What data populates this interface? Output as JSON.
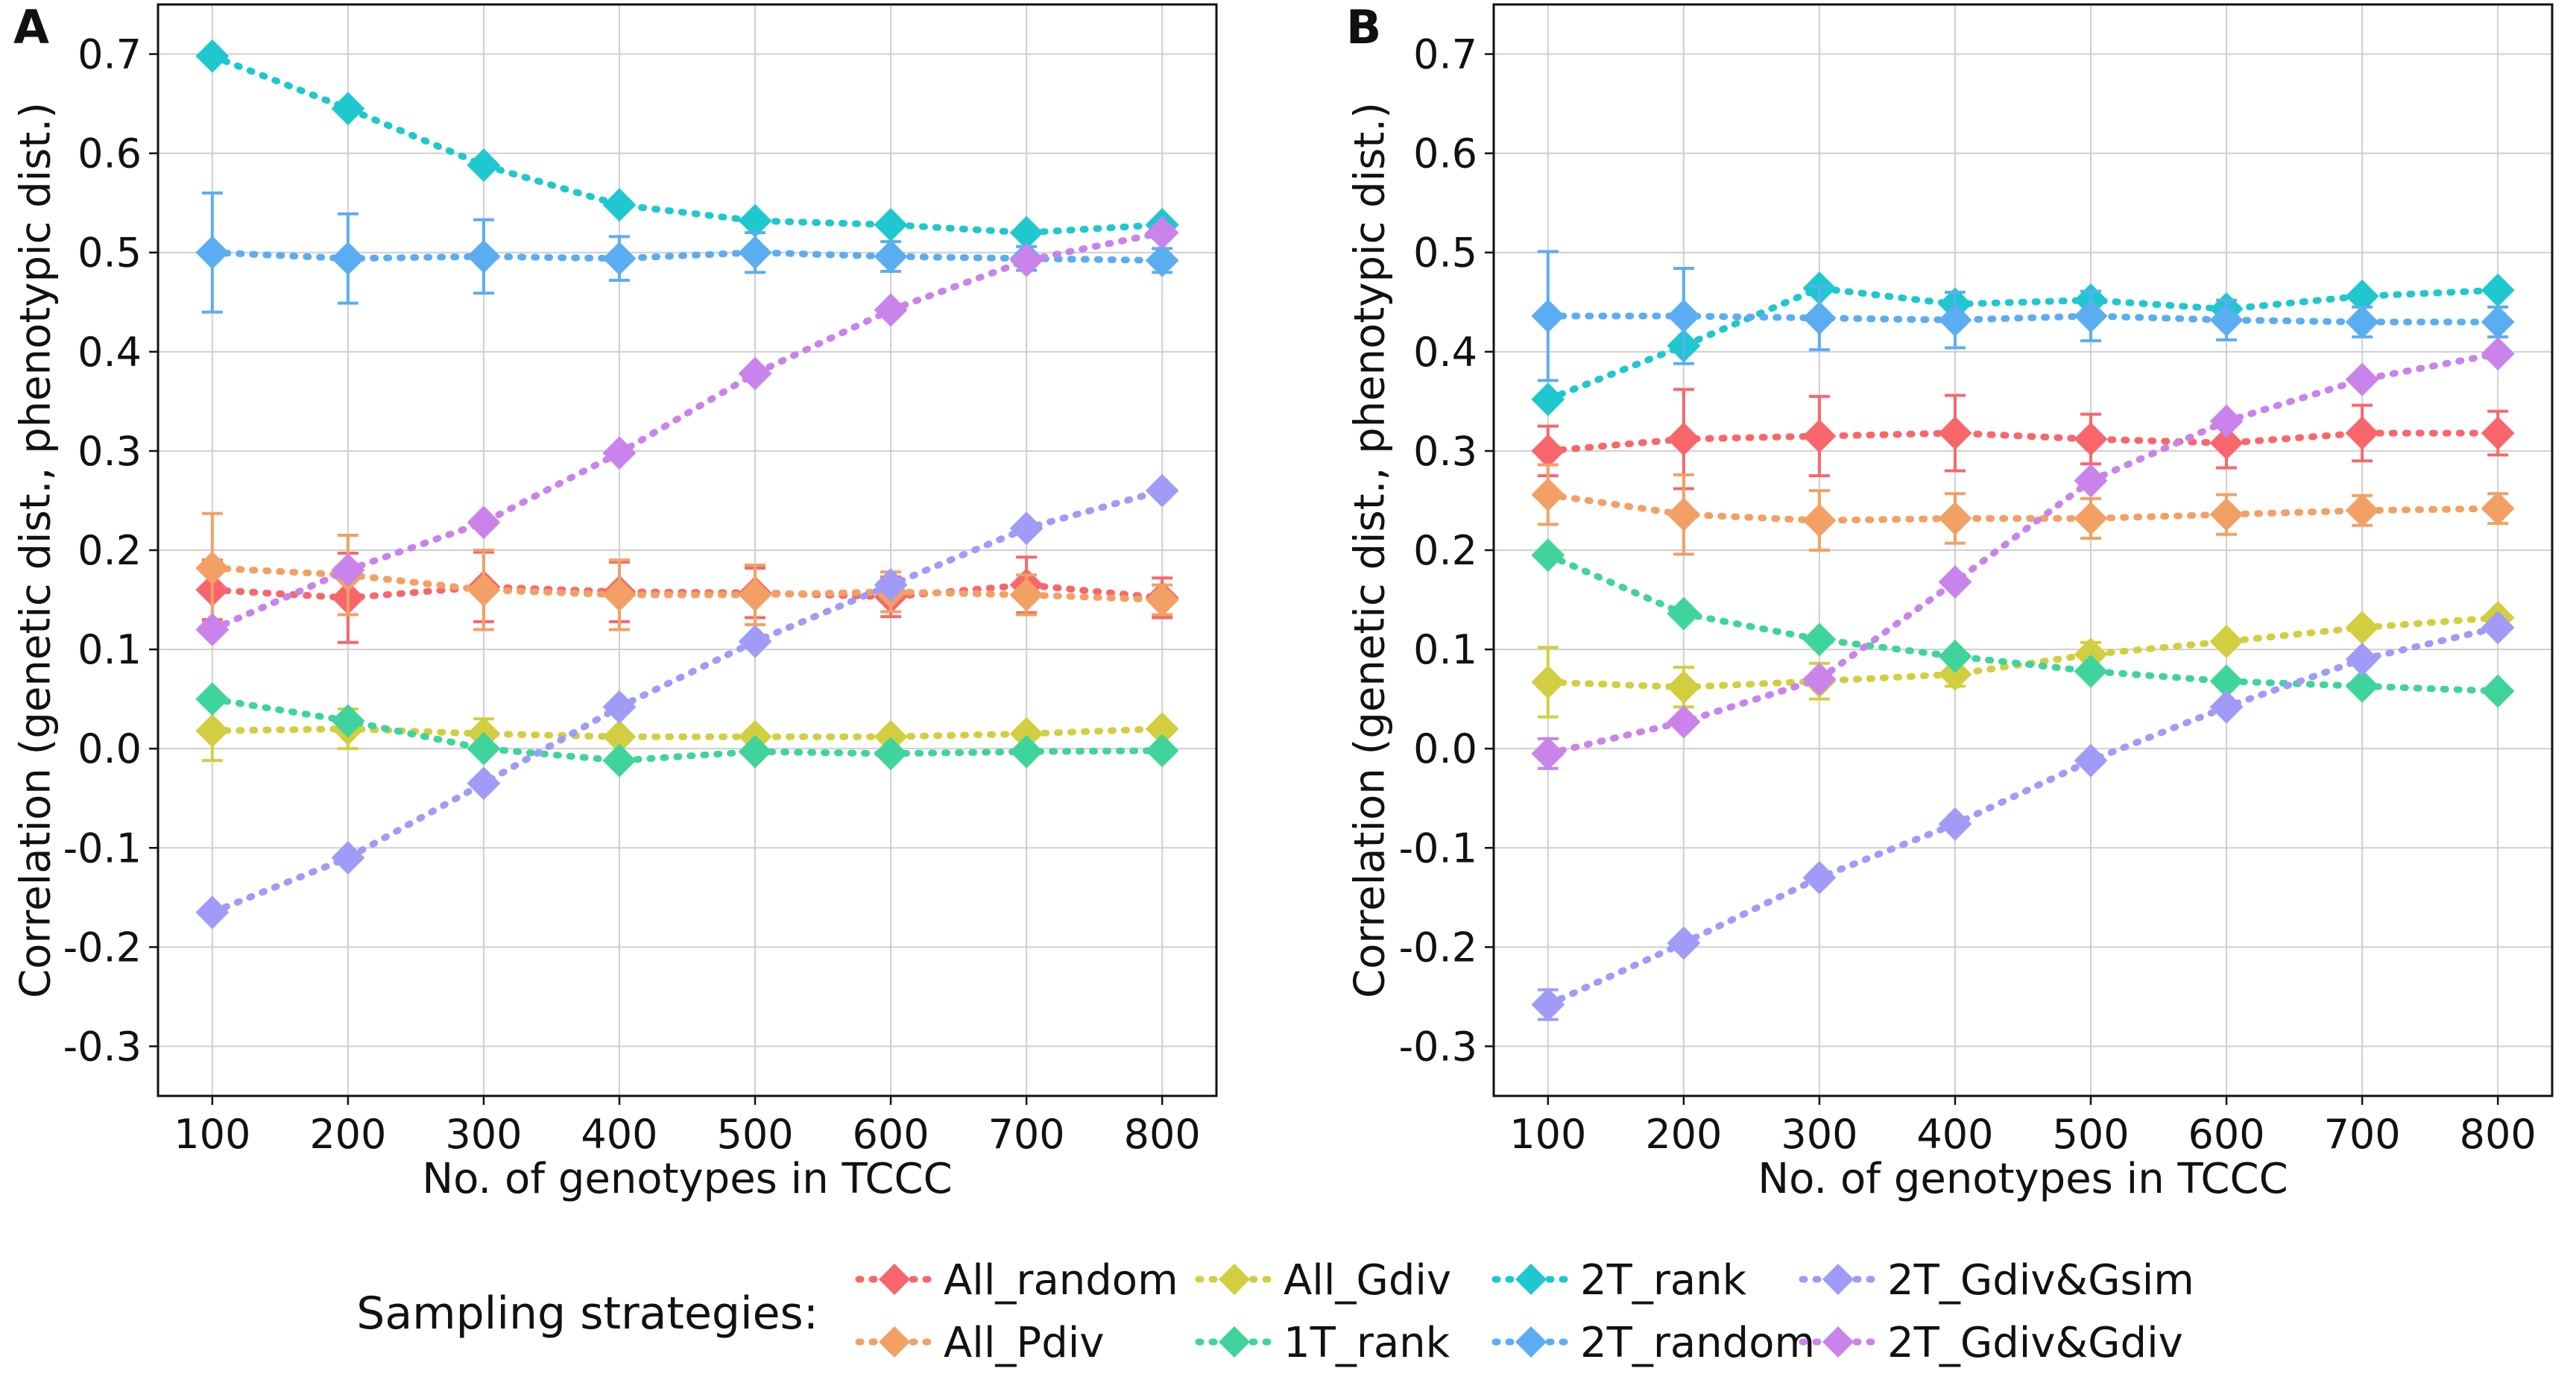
{
  "legend_title": "Sampling strategies:",
  "series_styles": [
    {
      "name": "All_random",
      "color": "#F8666B"
    },
    {
      "name": "All_Pdiv",
      "color": "#F2A064"
    },
    {
      "name": "All_Gdiv",
      "color": "#D3CE3F"
    },
    {
      "name": "1T_rank",
      "color": "#3FD49B"
    },
    {
      "name": "2T_rank",
      "color": "#1DC8CE"
    },
    {
      "name": "2T_random",
      "color": "#5BADF2"
    },
    {
      "name": "2T_Gdiv&Gsim",
      "color": "#A09BF7"
    },
    {
      "name": "2T_Gdiv&Gdiv",
      "color": "#C983EB"
    }
  ],
  "chart_data": [
    {
      "panel_label": "A",
      "type": "line",
      "xlabel": "No. of genotypes in TCCC",
      "ylabel": "Correlation (genetic dist., phenotypic dist.)",
      "x": [
        100,
        200,
        300,
        400,
        500,
        600,
        700,
        800
      ],
      "xlim": [
        60,
        840
      ],
      "ylim": [
        -0.35,
        0.75
      ],
      "x_ticks": [
        "100",
        "200",
        "300",
        "400",
        "500",
        "600",
        "700",
        "800"
      ],
      "y_ticks": [
        "-0.3",
        "-0.2",
        "-0.1",
        "0.0",
        "0.1",
        "0.2",
        "0.3",
        "0.4",
        "0.5",
        "0.6",
        "0.7"
      ],
      "y_tick_values": [
        -0.3,
        -0.2,
        -0.1,
        0.0,
        0.1,
        0.2,
        0.3,
        0.4,
        0.5,
        0.6,
        0.7
      ],
      "grid": true,
      "series": [
        {
          "name": "All_random",
          "values": [
            0.16,
            0.152,
            0.163,
            0.158,
            0.157,
            0.153,
            0.165,
            0.152
          ],
          "errors": [
            0.03,
            0.045,
            0.035,
            0.03,
            0.025,
            0.02,
            0.028,
            0.02
          ]
        },
        {
          "name": "All_Pdiv",
          "values": [
            0.182,
            0.175,
            0.16,
            0.155,
            0.155,
            0.158,
            0.155,
            0.15
          ],
          "errors": [
            0.055,
            0.04,
            0.04,
            0.035,
            0.03,
            0.02,
            0.02,
            0.015
          ]
        },
        {
          "name": "All_Gdiv",
          "values": [
            0.018,
            0.02,
            0.015,
            0.012,
            0.012,
            0.012,
            0.015,
            0.02
          ],
          "errors": [
            0.03,
            0.02,
            0.015,
            0.0,
            0.0,
            0.0,
            0.0,
            0.0
          ]
        },
        {
          "name": "1T_rank",
          "values": [
            0.05,
            0.028,
            0.0,
            -0.012,
            -0.003,
            -0.005,
            -0.003,
            -0.002
          ],
          "errors": [
            0,
            0,
            0,
            0,
            0,
            0,
            0,
            0
          ]
        },
        {
          "name": "2T_rank",
          "values": [
            0.698,
            0.645,
            0.588,
            0.548,
            0.532,
            0.528,
            0.52,
            0.528
          ],
          "errors": [
            0,
            0,
            0,
            0,
            0,
            0,
            0,
            0
          ]
        },
        {
          "name": "2T_random",
          "values": [
            0.5,
            0.494,
            0.496,
            0.494,
            0.5,
            0.496,
            0.494,
            0.492
          ],
          "errors": [
            0.06,
            0.045,
            0.037,
            0.022,
            0.02,
            0.015,
            0.012,
            0.012
          ]
        },
        {
          "name": "2T_Gdiv&Gsim",
          "values": [
            -0.165,
            -0.11,
            -0.035,
            0.042,
            0.108,
            0.165,
            0.222,
            0.26
          ],
          "errors": [
            0,
            0,
            0,
            0,
            0,
            0,
            0,
            0
          ]
        },
        {
          "name": "2T_Gdiv&Gdiv",
          "values": [
            0.12,
            0.18,
            0.228,
            0.298,
            0.378,
            0.442,
            0.492,
            0.52
          ],
          "errors": [
            0,
            0,
            0,
            0,
            0,
            0,
            0,
            0
          ]
        }
      ]
    },
    {
      "panel_label": "B",
      "type": "line",
      "xlabel": "No. of genotypes in TCCC",
      "ylabel": "Correlation (genetic dist., phenotypic dist.)",
      "x": [
        100,
        200,
        300,
        400,
        500,
        600,
        700,
        800
      ],
      "xlim": [
        60,
        840
      ],
      "ylim": [
        -0.35,
        0.75
      ],
      "x_ticks": [
        "100",
        "200",
        "300",
        "400",
        "500",
        "600",
        "700",
        "800"
      ],
      "y_ticks": [
        "-0.3",
        "-0.2",
        "-0.1",
        "0.0",
        "0.1",
        "0.2",
        "0.3",
        "0.4",
        "0.5",
        "0.6",
        "0.7"
      ],
      "y_tick_values": [
        -0.3,
        -0.2,
        -0.1,
        0.0,
        0.1,
        0.2,
        0.3,
        0.4,
        0.5,
        0.6,
        0.7
      ],
      "grid": true,
      "series": [
        {
          "name": "All_random",
          "values": [
            0.3,
            0.312,
            0.315,
            0.318,
            0.312,
            0.308,
            0.318,
            0.318
          ],
          "errors": [
            0.025,
            0.05,
            0.04,
            0.038,
            0.025,
            0.025,
            0.028,
            0.022
          ]
        },
        {
          "name": "All_Pdiv",
          "values": [
            0.256,
            0.236,
            0.23,
            0.232,
            0.232,
            0.236,
            0.24,
            0.242
          ],
          "errors": [
            0.03,
            0.04,
            0.03,
            0.025,
            0.02,
            0.02,
            0.015,
            0.015
          ]
        },
        {
          "name": "All_Gdiv",
          "values": [
            0.067,
            0.062,
            0.068,
            0.075,
            0.095,
            0.108,
            0.122,
            0.132
          ],
          "errors": [
            0.035,
            0.02,
            0.018,
            0.012,
            0.012,
            0.0,
            0.0,
            0.0
          ]
        },
        {
          "name": "1T_rank",
          "values": [
            0.195,
            0.136,
            0.11,
            0.093,
            0.078,
            0.068,
            0.063,
            0.058
          ],
          "errors": [
            0,
            0,
            0,
            0,
            0,
            0,
            0,
            0
          ]
        },
        {
          "name": "2T_rank",
          "values": [
            0.352,
            0.406,
            0.464,
            0.448,
            0.452,
            0.443,
            0.456,
            0.462
          ],
          "errors": [
            0,
            0,
            0,
            0,
            0,
            0,
            0,
            0
          ]
        },
        {
          "name": "2T_random",
          "values": [
            0.436,
            0.436,
            0.434,
            0.432,
            0.436,
            0.432,
            0.43,
            0.43
          ],
          "errors": [
            0.065,
            0.048,
            0.032,
            0.028,
            0.025,
            0.02,
            0.015,
            0.015
          ]
        },
        {
          "name": "2T_Gdiv&Gsim",
          "values": [
            -0.258,
            -0.196,
            -0.13,
            -0.076,
            -0.012,
            0.042,
            0.09,
            0.122
          ],
          "errors": [
            0.015,
            0,
            0,
            0,
            0,
            0,
            0,
            0
          ]
        },
        {
          "name": "2T_Gdiv&Gdiv",
          "values": [
            -0.005,
            0.027,
            0.07,
            0.168,
            0.27,
            0.33,
            0.372,
            0.398
          ],
          "errors": [
            0.015,
            0,
            0,
            0,
            0,
            0,
            0,
            0
          ]
        }
      ]
    }
  ]
}
